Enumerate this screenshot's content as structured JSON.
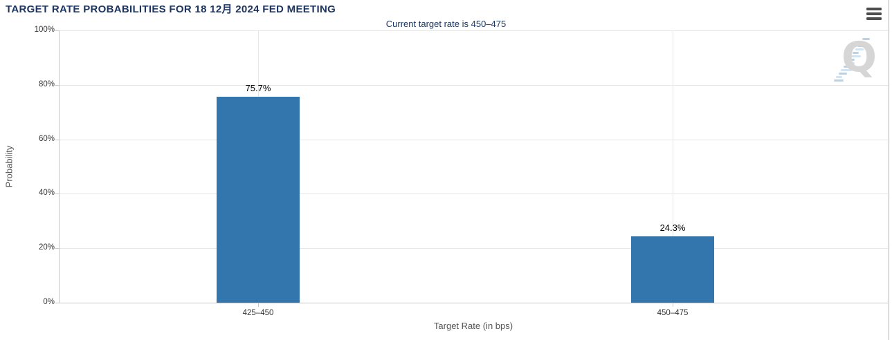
{
  "header": {
    "title": "TARGET RATE PROBABILITIES FOR 18 12月 2024 FED MEETING"
  },
  "menu": {
    "icon": "hamburger"
  },
  "watermark": {
    "letter": "Q"
  },
  "chart_data": {
    "type": "bar",
    "title": "Current target rate is 450–475",
    "categories": [
      "425–450",
      "450–475"
    ],
    "values": [
      75.7,
      24.3
    ],
    "value_labels": [
      "75.7%",
      "24.3%"
    ],
    "xlabel": "Target Rate (in bps)",
    "ylabel": "Probability",
    "ylim": [
      0,
      100
    ],
    "ytick_step": 20,
    "yticks": [
      "0%",
      "20%",
      "40%",
      "60%",
      "80%",
      "100%"
    ],
    "grid": true,
    "legend": "none",
    "bar_color": "#3376ad"
  },
  "colors": {
    "title": "#1c3661",
    "subtitle": "#1c3661",
    "bar": "#3376ad",
    "grid": "#e6e6e6",
    "axis": "#c6c6c6",
    "tick_label": "#333333",
    "axis_title": "#555555",
    "value_label": "#000000",
    "menu_icon": "#4d4d4d",
    "panel_border": "#b3b3b3",
    "watermark_q": "#d6d6d6",
    "watermark_dash": "#7dafd7"
  }
}
